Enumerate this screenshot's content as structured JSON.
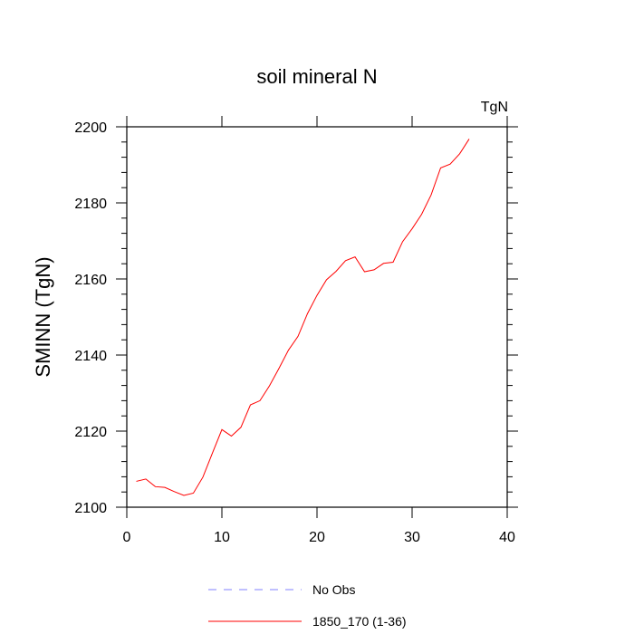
{
  "chart_data": {
    "type": "line",
    "title": "soil mineral N",
    "units_label": "TgN",
    "ylabel": "SMINN  (TgN)",
    "xlabel": "",
    "xlim": [
      0,
      40
    ],
    "ylim": [
      2100,
      2200
    ],
    "x_ticks": [
      0,
      10,
      20,
      30,
      40
    ],
    "y_ticks": [
      2100,
      2120,
      2140,
      2160,
      2180,
      2200
    ],
    "x_tick_labels": [
      "0",
      "10",
      "20",
      "30",
      "40"
    ],
    "y_tick_labels": [
      "2100",
      "2120",
      "2140",
      "2160",
      "2180",
      "2200"
    ],
    "grid": false,
    "legend_position": "bottom",
    "series": [
      {
        "name": "1850_170 (1-36)",
        "color": "#ff0000",
        "dash": "solid",
        "x": [
          1,
          2,
          3,
          4,
          5,
          6,
          7,
          8,
          9,
          10,
          11,
          12,
          13,
          14,
          15,
          16,
          17,
          18,
          19,
          20,
          21,
          22,
          23,
          24,
          25,
          26,
          27,
          28,
          29,
          30,
          31,
          32,
          33,
          34,
          35,
          36
        ],
        "values": [
          2106.8,
          2107.4,
          2105.4,
          2105.2,
          2104.1,
          2103.1,
          2103.7,
          2107.9,
          2114.2,
          2120.4,
          2118.7,
          2121.0,
          2126.9,
          2128.0,
          2131.9,
          2136.5,
          2141.3,
          2144.9,
          2150.9,
          2155.7,
          2159.8,
          2162.0,
          2164.8,
          2165.8,
          2161.9,
          2162.4,
          2164.1,
          2164.4,
          2169.8,
          2173.2,
          2177.0,
          2182.1,
          2189.2,
          2190.2,
          2192.9,
          2196.8
        ]
      },
      {
        "name": "No Obs",
        "color": "#8080ff",
        "dash": "dashed",
        "x": [],
        "values": []
      }
    ]
  }
}
